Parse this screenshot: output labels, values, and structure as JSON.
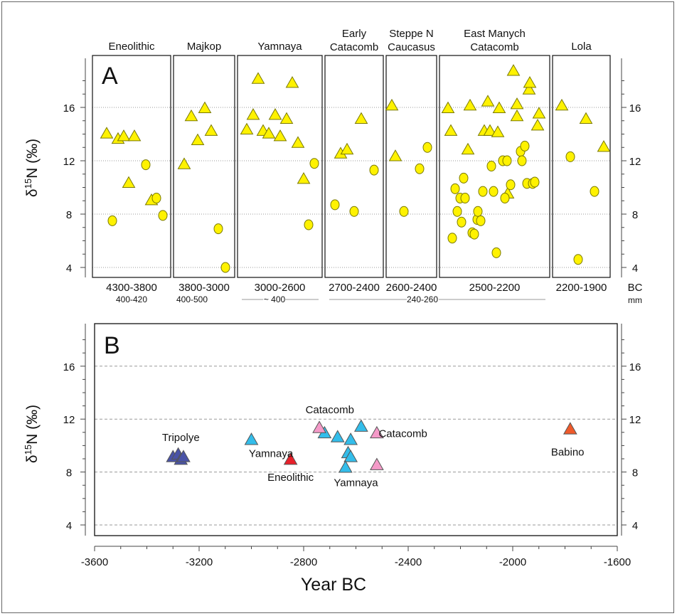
{
  "chart_data": [
    {
      "panel": "A",
      "type": "scatter",
      "ylabel": "δ15N (‰)",
      "ylabel_parts": {
        "delta": "δ",
        "sup": "15",
        "rest": "N (‰)"
      },
      "yticks": [
        4,
        8,
        12,
        16
      ],
      "ylim": [
        3.2,
        19.2
      ],
      "grid": true,
      "xunit_label": "BC",
      "size_label": "mm",
      "marker_color": "#FFF200",
      "marker_stroke": "#7a7a00",
      "groups": [
        {
          "name": "Eneolithic",
          "period": "4300-3800",
          "triangles": [
            14.0,
            13.6,
            13.8,
            13.8,
            10.3,
            9.0
          ],
          "circles": [
            7.5,
            11.7,
            9.2,
            7.9
          ]
        },
        {
          "name": "Majkop",
          "period": "3800-3000",
          "triangles": [
            11.7,
            15.3,
            13.5,
            15.9,
            14.2
          ],
          "circles": [
            6.9,
            4.0
          ]
        },
        {
          "name": "Yamnaya",
          "period": "3000-2600",
          "triangles": [
            14.3,
            15.4,
            18.1,
            14.2,
            14.0,
            15.4,
            13.8,
            15.1,
            17.8,
            13.3,
            10.6
          ],
          "circles": [
            7.2,
            11.8
          ]
        },
        {
          "name": "Early Catacomb",
          "period": "2700-2400",
          "triangles": [
            12.5,
            12.8,
            15.1
          ],
          "circles": [
            8.7,
            8.2,
            11.3
          ]
        },
        {
          "name": "Steppe N Caucasus",
          "period": "2600-2400",
          "triangles": [
            12.3,
            16.1
          ],
          "circles": [
            8.2,
            11.4,
            13.0
          ]
        },
        {
          "name": "East Manych Catacomb",
          "period": "2500-2200",
          "triangles": [
            15.9,
            14.2,
            16.1,
            12.8,
            16.4,
            14.2,
            14.2,
            15.9,
            14.1,
            16.2,
            15.3,
            17.3,
            17.8,
            18.7,
            14.6,
            15.5,
            9.5
          ],
          "circles": [
            9.9,
            8.2,
            9.2,
            7.4,
            10.7,
            9.2,
            6.2,
            6.6,
            6.5,
            7.6,
            8.2,
            7.5,
            9.7,
            11.6,
            9.7,
            5.1,
            12.0,
            12.0,
            9.2,
            10.2,
            12.7,
            12.0,
            13.1,
            10.3,
            10.3,
            10.4
          ]
        },
        {
          "name": "Lola",
          "period": "2200-1900",
          "triangles": [
            16.1,
            15.1,
            13.0
          ],
          "circles": [
            12.3,
            4.6,
            9.7
          ]
        }
      ],
      "size_ranges": [
        {
          "label": "400-420"
        },
        {
          "label": "400-500"
        },
        {
          "label": "~ 400"
        },
        {
          "label": "240-260"
        }
      ]
    },
    {
      "panel": "B",
      "type": "scatter",
      "xlabel": "Year BC",
      "ylabel": "δ15N (‰)",
      "ylabel_parts": {
        "delta": "δ",
        "sup": "15",
        "rest": "N (‰)"
      },
      "xticks": [
        -3600,
        -3200,
        -2800,
        -2400,
        -2000,
        -1600
      ],
      "xlim": [
        -3600,
        -1600
      ],
      "yticks": [
        4,
        8,
        12,
        16
      ],
      "ylim": [
        3.2,
        19.2
      ],
      "grid": true,
      "series": [
        {
          "name": "Tripolye",
          "color": "#4A53A7",
          "points": [
            [
              -3300,
              9.1
            ],
            [
              -3280,
              9.3
            ],
            [
              -3270,
              8.9
            ],
            [
              -3260,
              9.1
            ]
          ]
        },
        {
          "name": "Yamnaya",
          "color": "#33BDEA",
          "points": [
            [
              -3000,
              10.4
            ],
            [
              -2720,
              10.9
            ],
            [
              -2670,
              10.6
            ],
            [
              -2630,
              9.4
            ],
            [
              -2620,
              9.1
            ],
            [
              -2620,
              10.4
            ],
            [
              -2580,
              11.4
            ],
            [
              -2640,
              8.3
            ]
          ]
        },
        {
          "name": "Eneolithic",
          "color": "#E8202A",
          "points": [
            [
              -2850,
              8.9
            ]
          ]
        },
        {
          "name": "Catacomb",
          "color": "#F49AC8",
          "points": [
            [
              -2740,
              11.3
            ],
            [
              -2520,
              10.9
            ],
            [
              -2520,
              8.5
            ]
          ]
        },
        {
          "name": "Babino",
          "color": "#EF5A2B",
          "points": [
            [
              -1780,
              11.2
            ]
          ]
        }
      ],
      "annotations": [
        {
          "text": "Tripolye",
          "at": [
            -3270,
            10.6
          ]
        },
        {
          "text": "Yamnaya",
          "at": [
            -2925,
            9.4
          ]
        },
        {
          "text": "Eneolithic",
          "at": [
            -2850,
            7.6
          ]
        },
        {
          "text": "Catacomb",
          "at": [
            -2700,
            12.7
          ]
        },
        {
          "text": "Catacomb",
          "at": [
            -2420,
            10.9
          ]
        },
        {
          "text": "Yamnaya",
          "at": [
            -2600,
            7.2
          ]
        },
        {
          "text": "Babino",
          "at": [
            -1790,
            9.5
          ]
        }
      ]
    }
  ]
}
